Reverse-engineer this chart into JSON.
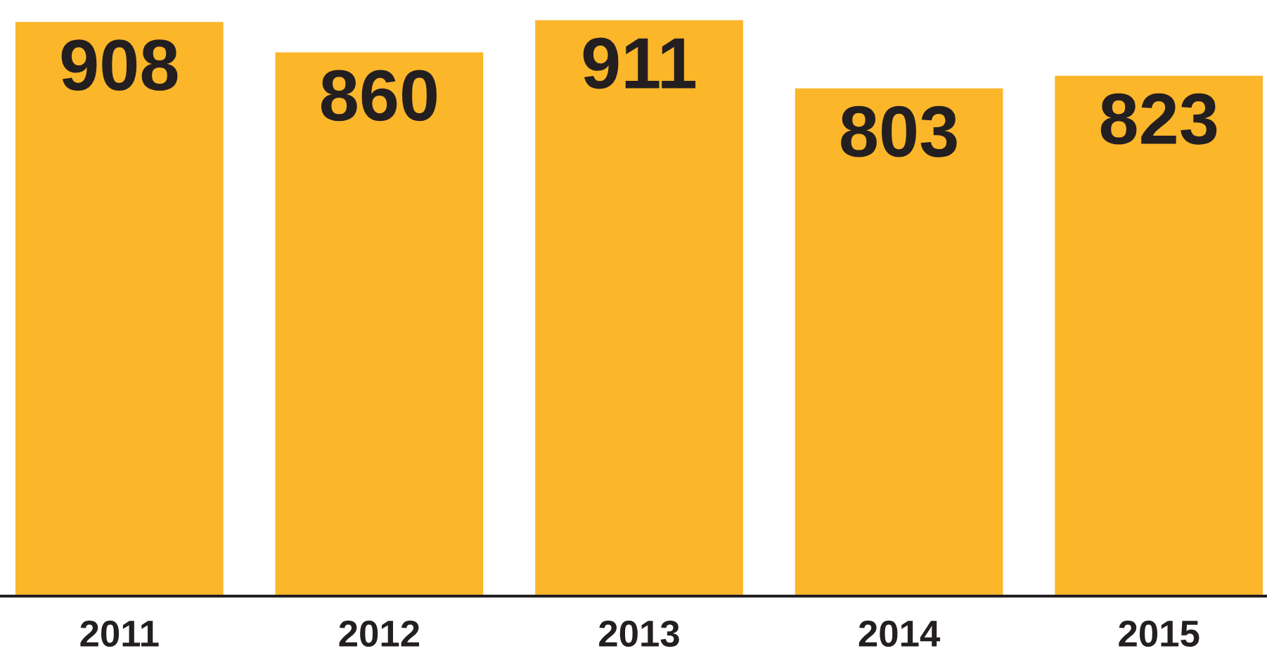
{
  "chart_data": {
    "type": "bar",
    "categories": [
      "2011",
      "2012",
      "2013",
      "2014",
      "2015"
    ],
    "values": [
      908,
      860,
      911,
      803,
      823
    ],
    "color": "#fbb62a",
    "data_labels": true,
    "grid": false,
    "legend": false
  }
}
